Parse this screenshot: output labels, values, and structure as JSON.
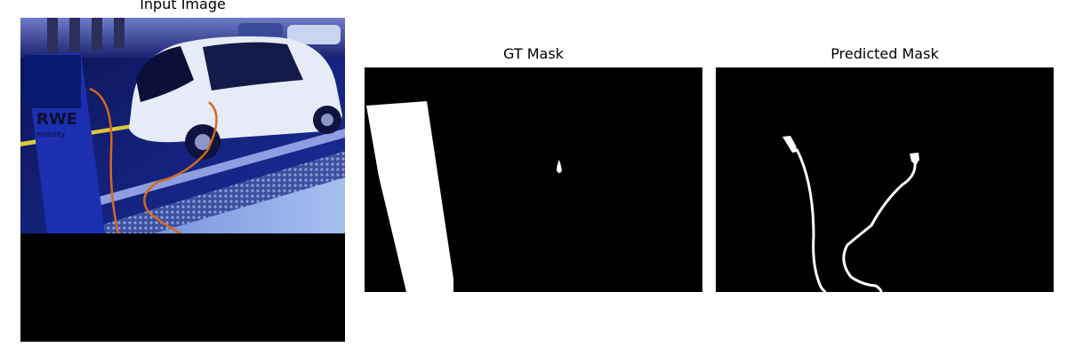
{
  "panels": {
    "input": {
      "title": "Input Image"
    },
    "gt": {
      "title": "GT Mask"
    },
    "pred": {
      "title": "Predicted Mask"
    }
  },
  "photo_signage": {
    "station_brand": "RWE",
    "station_subtext": "mobility"
  },
  "colors": {
    "background": "#ffffff",
    "mask_background": "#000000",
    "mask_foreground": "#ffffff",
    "photo_tint": "#1b2a8f",
    "cable": "#d2691e"
  }
}
